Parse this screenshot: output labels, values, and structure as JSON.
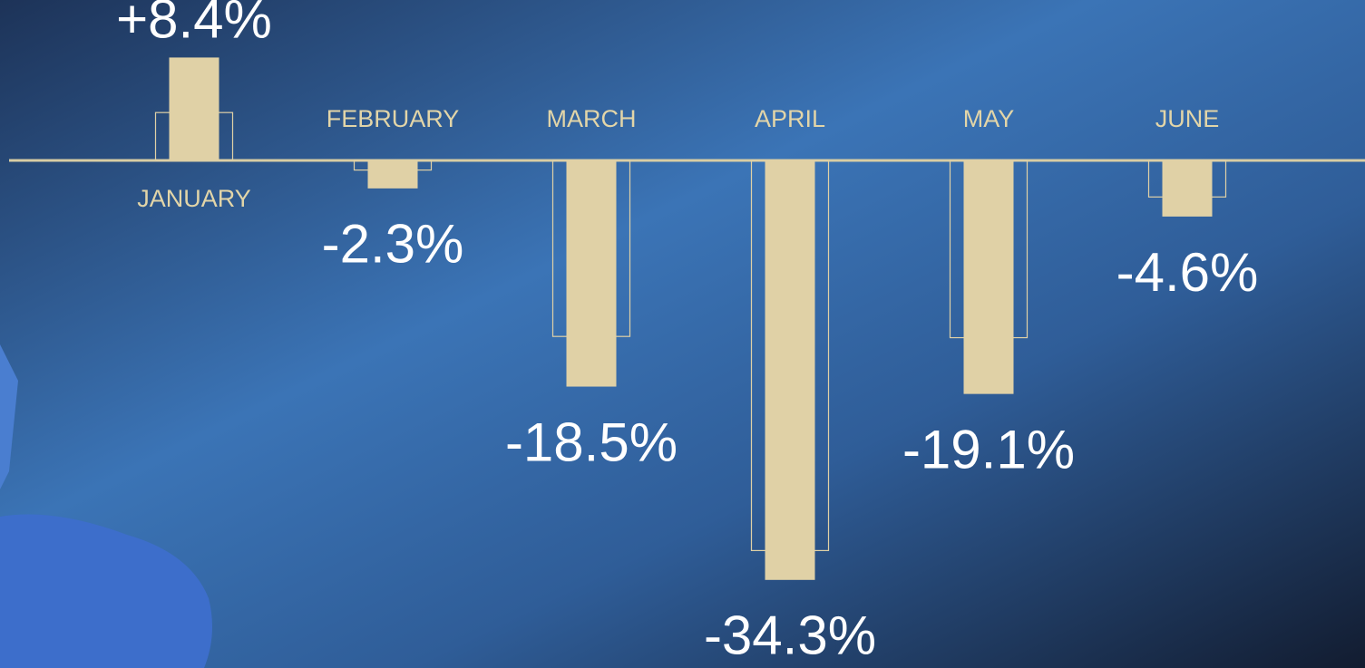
{
  "chart_data": {
    "type": "bar",
    "categories": [
      "JANUARY",
      "FEBRUARY",
      "MARCH",
      "APRIL",
      "MAY",
      "JUNE"
    ],
    "series": [
      {
        "color": "#e0d1a6",
        "values": [
          8.4,
          -2.3,
          -18.5,
          -34.3,
          -19.1,
          -4.6
        ],
        "value_labels": [
          "+8.4%",
          "-2.3%",
          "-18.5%",
          "-34.3%",
          "-19.1%",
          "-4.6%"
        ]
      },
      {
        "color": "#e0d1a6",
        "style": "outline",
        "values": [
          3.9,
          -0.8,
          -14.4,
          -31.9,
          -14.5,
          -3.0
        ]
      }
    ],
    "ylim": [
      -41.5,
      13.1
    ]
  }
}
